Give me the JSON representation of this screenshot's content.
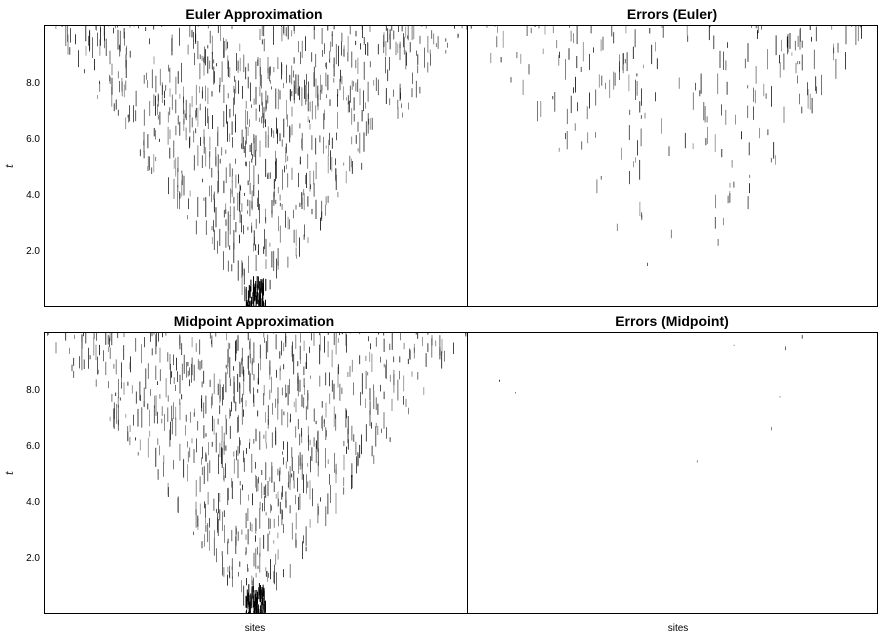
{
  "chart_data": [
    {
      "type": "heatmap",
      "title": "Euler Approximation",
      "ylabel": "t",
      "xlabel": "",
      "y_ticks": [
        "2.0",
        "4.0",
        "6.0",
        "8.0"
      ],
      "ylim": [
        0,
        10
      ],
      "grid": false,
      "colors": {
        "ink": "#000000",
        "background": "#ffffff"
      },
      "pattern": "spreading-cone",
      "density": 1.0
    },
    {
      "type": "heatmap",
      "title": "Errors (Euler)",
      "ylabel": "",
      "xlabel": "",
      "ylim": [
        0,
        10
      ],
      "grid": false,
      "colors": {
        "ink": "#000000",
        "background": "#ffffff"
      },
      "pattern": "error-edges",
      "density": 0.55
    },
    {
      "type": "heatmap",
      "title": "Midpoint Approximation",
      "ylabel": "t",
      "xlabel": "sites",
      "y_ticks": [
        "2.0",
        "4.0",
        "6.0",
        "8.0"
      ],
      "ylim": [
        0,
        10
      ],
      "grid": false,
      "colors": {
        "ink": "#000000",
        "background": "#ffffff"
      },
      "pattern": "spreading-cone",
      "density": 1.0
    },
    {
      "type": "heatmap",
      "title": "Errors (Midpoint)",
      "ylabel": "",
      "xlabel": "sites",
      "ylim": [
        0,
        10
      ],
      "grid": false,
      "colors": {
        "ink": "#000000",
        "background": "#ffffff"
      },
      "pattern": "error-sparse",
      "density": 0.15
    }
  ]
}
